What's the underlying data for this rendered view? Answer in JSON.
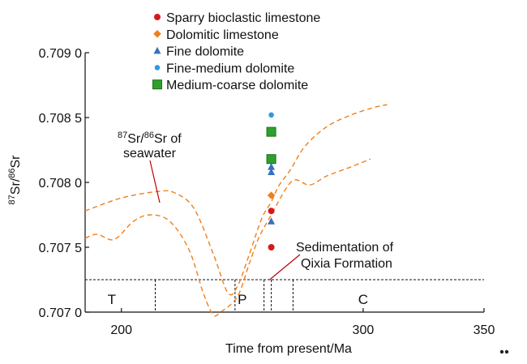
{
  "chart_data": {
    "type": "scatter",
    "xlabel": "Time from present/Ma",
    "ylabel_main": "Sr/",
    "ylabel_sup1": "87",
    "ylabel_sup2": "86",
    "ylabel_end": "Sr",
    "xlim": [
      185,
      350
    ],
    "ylim": [
      0.707,
      0.709
    ],
    "x_ticks": [
      {
        "value": 200,
        "label": "200"
      },
      {
        "value": 300,
        "label": "300"
      },
      {
        "value": 350,
        "label": "350"
      }
    ],
    "y_ticks": [
      {
        "value": 0.707,
        "label": "0.707 0"
      },
      {
        "value": 0.7075,
        "label": "0.707 5"
      },
      {
        "value": 0.708,
        "label": "0.708 0"
      },
      {
        "value": 0.7085,
        "label": "0.708 5"
      },
      {
        "value": 0.709,
        "label": "0.709 0"
      }
    ],
    "legend_position": "top-center",
    "series": [
      {
        "name": "Sparry bioclastic limestone",
        "marker": "circle",
        "color": "#d7191c",
        "points": [
          {
            "x": 262,
            "y": 0.7075
          },
          {
            "x": 262,
            "y": 0.70778
          }
        ]
      },
      {
        "name": "Dolomitic limestone",
        "marker": "diamond",
        "color": "#f07f1a",
        "points": [
          {
            "x": 262,
            "y": 0.7079
          }
        ]
      },
      {
        "name": "Fine dolomite",
        "marker": "triangle",
        "color": "#3a6fc0",
        "points": [
          {
            "x": 262,
            "y": 0.7077
          },
          {
            "x": 262,
            "y": 0.70808
          },
          {
            "x": 262,
            "y": 0.70812
          }
        ]
      },
      {
        "name": "Fine-medium dolomite",
        "marker": "circle-small",
        "color": "#2b9ae8",
        "points": [
          {
            "x": 262,
            "y": 0.70852
          }
        ]
      },
      {
        "name": "Medium-coarse dolomite",
        "marker": "square",
        "color": "#2ea02e",
        "points": [
          {
            "x": 262,
            "y": 0.70818
          },
          {
            "x": 262,
            "y": 0.70839
          }
        ]
      }
    ],
    "seawater_curve": {
      "color": "#f07f1a",
      "label_sup1": "87",
      "label_mid": "Sr/",
      "label_sup2": "86",
      "label_end": "Sr of",
      "label_line2": "seawater",
      "upper": [
        [
          185,
          0.70778
        ],
        [
          200,
          0.70788
        ],
        [
          215,
          0.70793
        ],
        [
          222,
          0.70792
        ],
        [
          230,
          0.7078
        ],
        [
          238,
          0.70745
        ],
        [
          244,
          0.70715
        ],
        [
          248,
          0.7072
        ],
        [
          253,
          0.70745
        ],
        [
          258,
          0.70772
        ],
        [
          262,
          0.70785
        ],
        [
          265,
          0.70797
        ],
        [
          270,
          0.7081
        ],
        [
          276,
          0.70828
        ],
        [
          285,
          0.70843
        ],
        [
          295,
          0.70852
        ],
        [
          305,
          0.70858
        ],
        [
          310,
          0.7086
        ]
      ],
      "lower": [
        [
          185,
          0.70757
        ],
        [
          190,
          0.7076
        ],
        [
          197,
          0.70756
        ],
        [
          205,
          0.7077
        ],
        [
          212,
          0.70775
        ],
        [
          220,
          0.7077
        ],
        [
          228,
          0.70748
        ],
        [
          234,
          0.70714
        ],
        [
          238,
          0.70698
        ],
        [
          241,
          0.707
        ],
        [
          248,
          0.70712
        ],
        [
          253,
          0.70738
        ],
        [
          257,
          0.70758
        ],
        [
          262,
          0.70775
        ],
        [
          268,
          0.70795
        ],
        [
          272,
          0.70802
        ],
        [
          278,
          0.70798
        ],
        [
          285,
          0.70805
        ],
        [
          295,
          0.70812
        ],
        [
          303,
          0.70818
        ]
      ]
    },
    "formation_annotation": {
      "line1": "Sedimentation of",
      "line2": "Qixia Formation",
      "pointer_data": [
        262,
        0.70725
      ]
    },
    "period_band": {
      "y_value": 0.70725,
      "boundaries": [
        214,
        247,
        259,
        262,
        271
      ],
      "labels": [
        {
          "text": "T",
          "x": 196
        },
        {
          "text": "P",
          "x": 250
        },
        {
          "text": "C",
          "x": 300
        }
      ]
    }
  }
}
